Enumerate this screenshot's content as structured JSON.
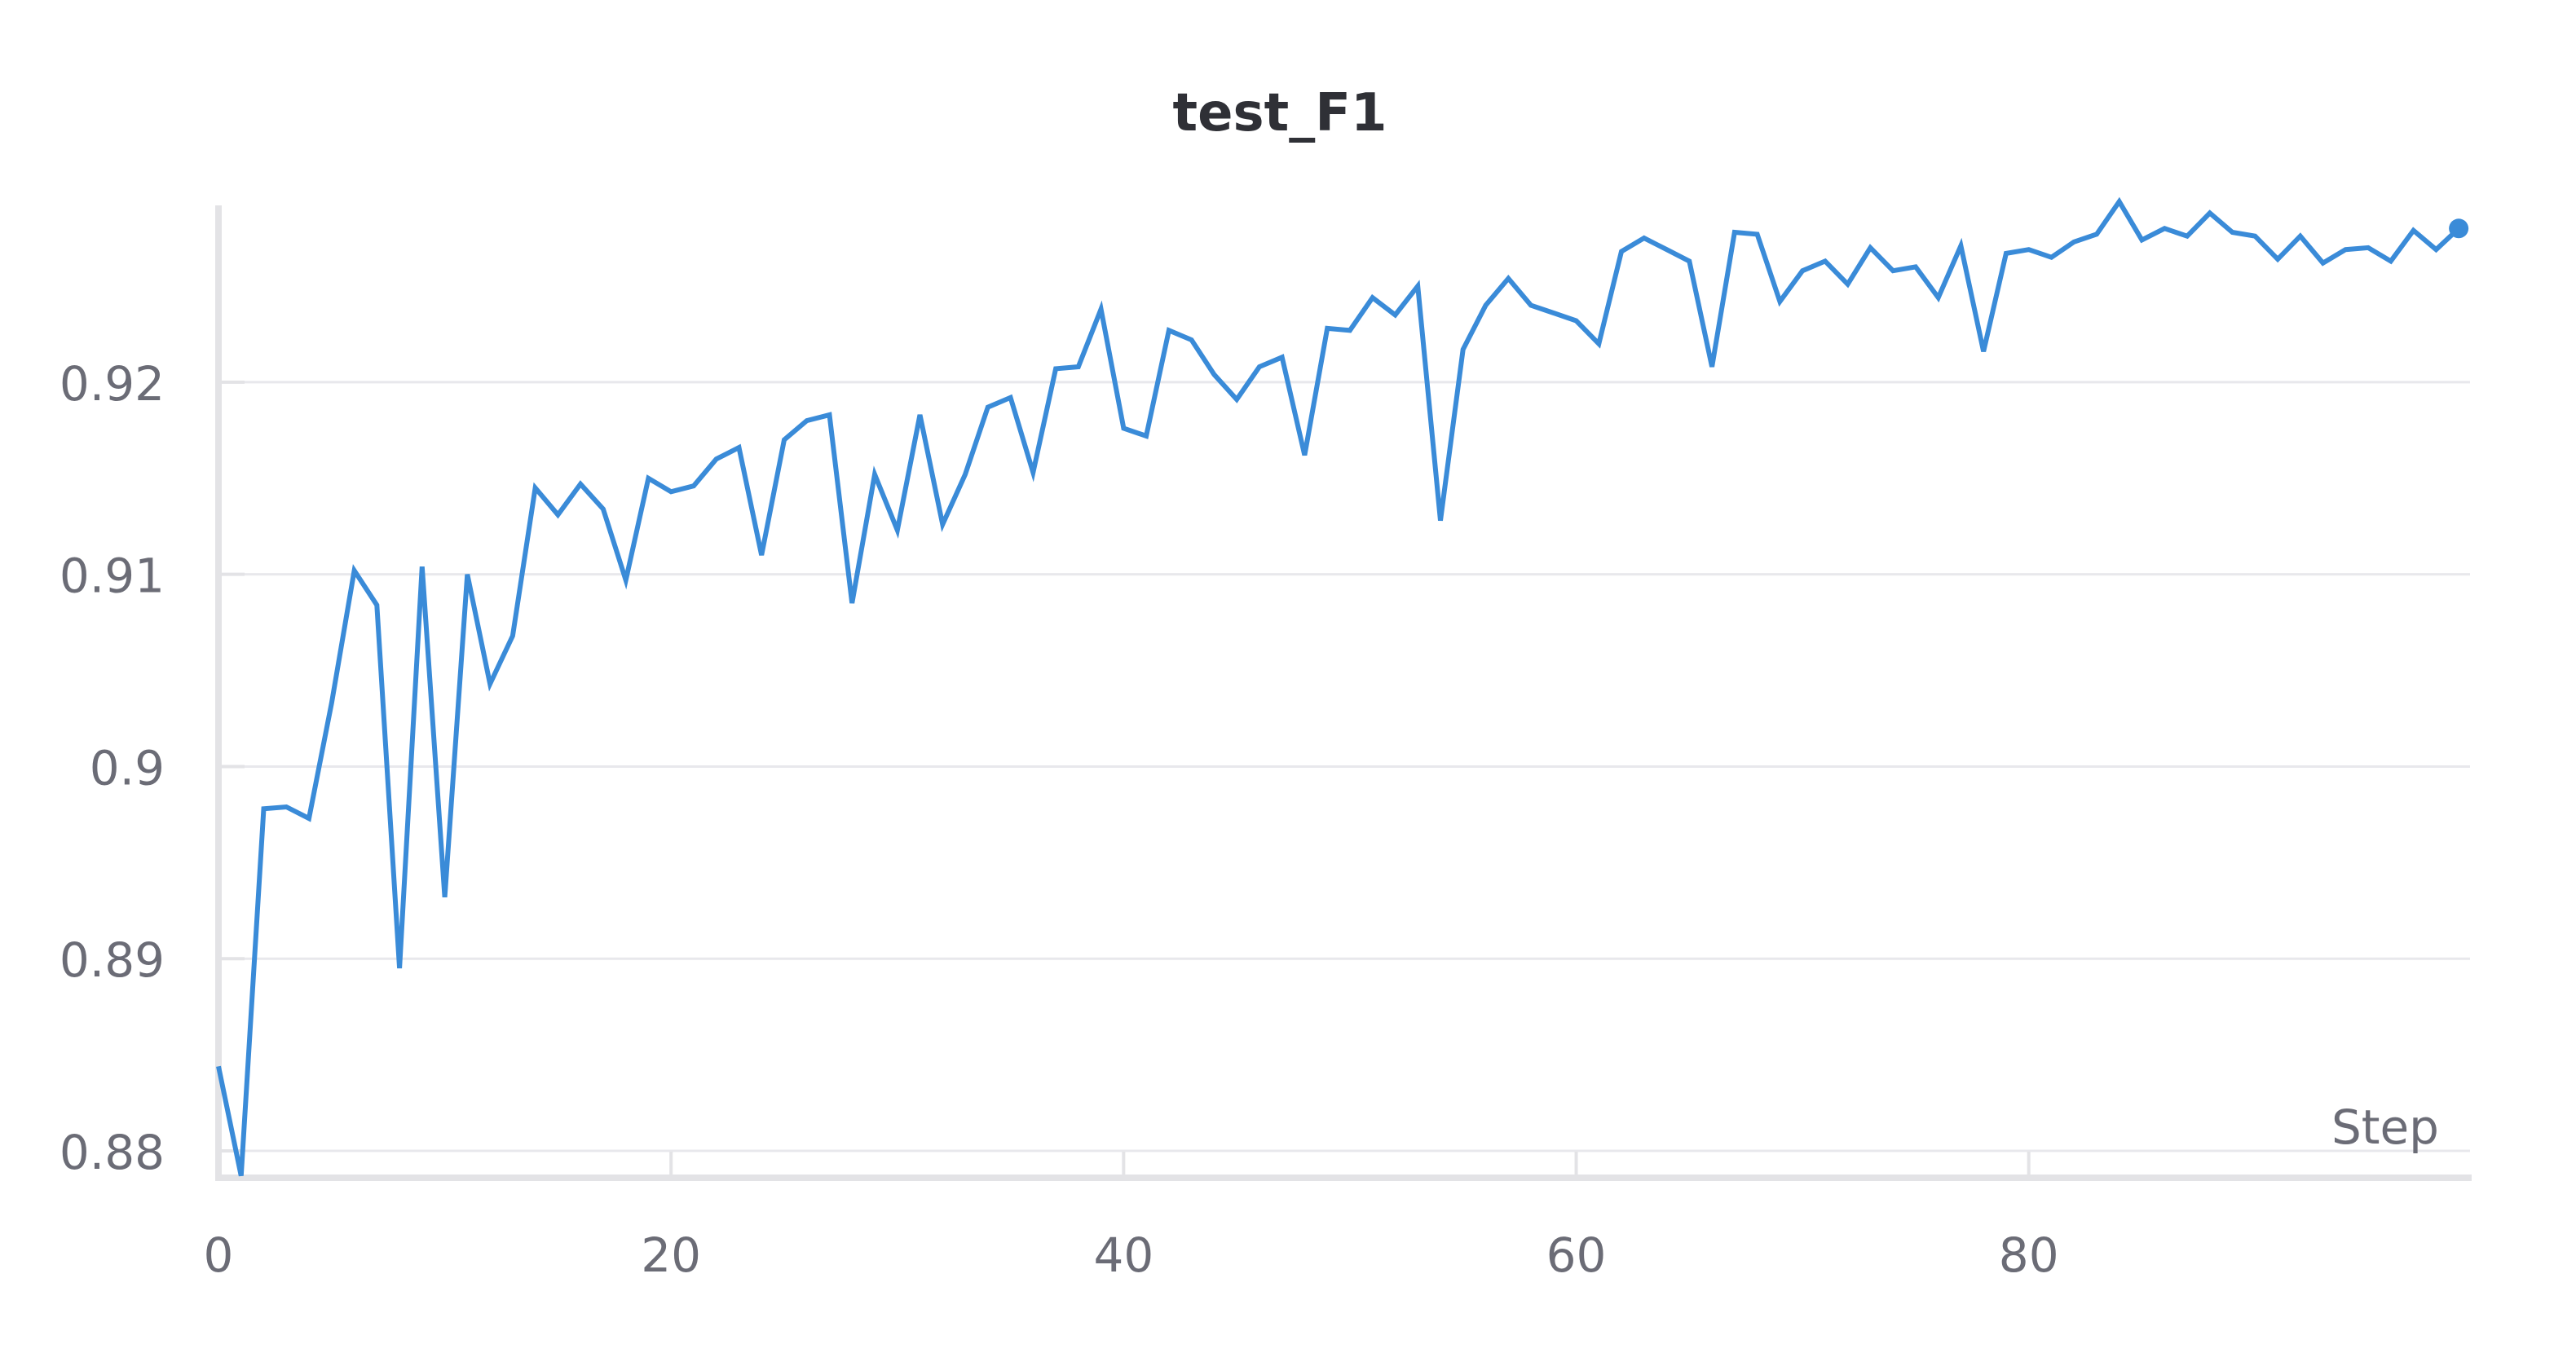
{
  "chart_data": {
    "type": "line",
    "title": "test_F1",
    "xlabel": "Step",
    "ylabel": "",
    "xlim": [
      0,
      99
    ],
    "ylim": [
      0.8786,
      0.9292
    ],
    "x_ticks": [
      0,
      20,
      40,
      60,
      80
    ],
    "y_ticks": [
      0.88,
      0.89,
      0.9,
      0.91,
      0.92
    ],
    "y_tick_labels": [
      "0.88",
      "0.89",
      "0.9",
      "0.91",
      "0.92"
    ],
    "x_tick_labels": [
      "0",
      "20",
      "40",
      "60",
      "80"
    ],
    "grid": true,
    "color": "#3a8bd8",
    "series": [
      {
        "values": [
          0.8844,
          0.8787,
          0.8978,
          0.8979,
          0.8973,
          0.9033,
          0.9102,
          0.9084,
          0.8895,
          0.9104,
          0.8932,
          0.91,
          0.9043,
          0.9068,
          0.9145,
          0.9131,
          0.9147,
          0.9134,
          0.9097,
          0.915,
          0.9143,
          0.9146,
          0.916,
          0.9166,
          0.911,
          0.917,
          0.918,
          0.9183,
          0.9085,
          0.9152,
          0.9123,
          0.9183,
          0.9126,
          0.9152,
          0.9187,
          0.9192,
          0.9153,
          0.9207,
          0.9208,
          0.9238,
          0.9176,
          0.9172,
          0.9227,
          0.9222,
          0.9204,
          0.9191,
          0.9208,
          0.9213,
          0.9162,
          0.9228,
          0.9227,
          0.9244,
          0.9235,
          0.925,
          0.9128,
          0.9217,
          0.924,
          0.9254,
          0.924,
          0.9236,
          0.9232,
          0.922,
          0.9268,
          0.9275,
          0.9269,
          0.9263,
          0.9208,
          0.9278,
          0.9277,
          0.9242,
          0.9258,
          0.9263,
          0.9251,
          0.927,
          0.9258,
          0.926,
          0.9244,
          0.9271,
          0.9216,
          0.9267,
          0.9269,
          0.9265,
          0.9273,
          0.9277,
          0.9294,
          0.9274,
          0.928,
          0.9276,
          0.9288,
          0.9278,
          0.9276,
          0.9264,
          0.9276,
          0.9262,
          0.9269,
          0.927,
          0.9263,
          0.9279,
          0.9269,
          0.928
        ]
      }
    ]
  }
}
